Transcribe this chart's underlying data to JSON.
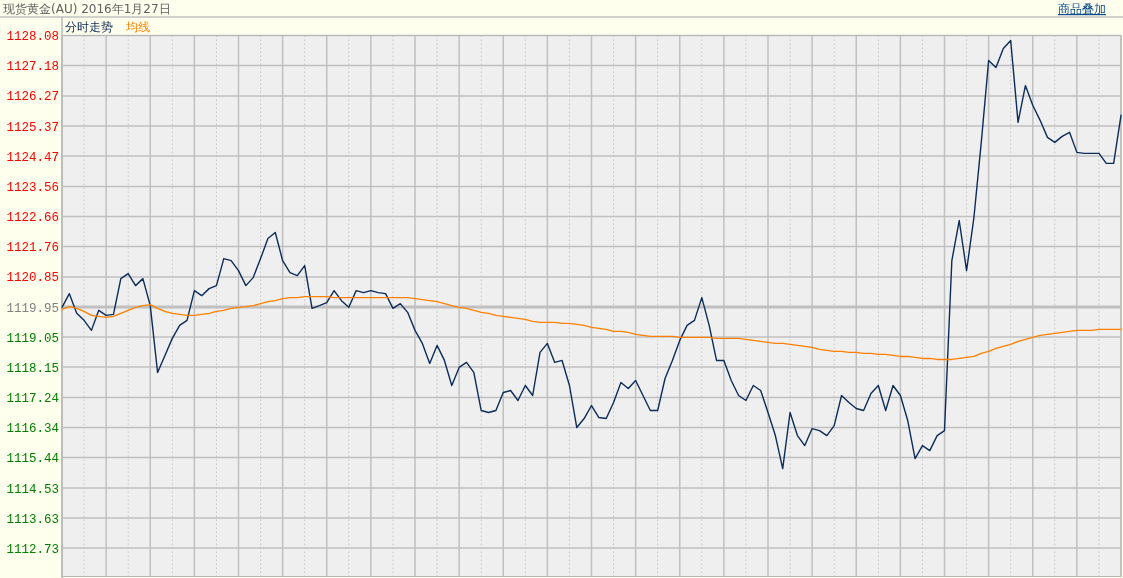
{
  "chart_data": {
    "type": "line",
    "title": "现货黄金(AU) 2016年1月27日",
    "annotations": [
      "商品叠加"
    ],
    "categories": [
      null,
      null,
      null,
      null,
      null,
      null,
      null,
      null,
      null,
      null,
      null,
      null,
      null,
      null,
      null,
      null,
      null,
      null,
      null,
      null,
      null,
      null,
      null,
      null,
      null,
      null,
      null,
      null,
      null,
      null,
      null,
      null,
      null,
      null,
      null,
      null,
      null,
      null,
      null,
      null,
      null,
      null,
      null,
      null,
      null,
      null,
      null,
      null,
      null,
      null,
      null,
      null,
      null,
      null,
      null,
      null,
      null,
      null,
      null,
      null,
      null,
      null,
      null,
      null,
      null,
      null,
      null,
      null,
      null,
      null,
      null,
      null,
      null,
      null,
      null,
      null,
      null,
      null,
      null,
      null,
      null,
      null,
      null,
      null,
      null,
      null,
      null,
      null,
      null,
      null,
      null,
      null,
      null,
      null,
      null,
      null,
      null,
      null,
      null,
      null,
      null,
      null,
      null,
      null,
      null,
      null,
      null,
      null,
      null,
      null,
      null,
      null,
      null,
      null,
      null,
      null,
      null,
      null,
      null,
      null,
      null,
      null,
      null,
      null,
      null,
      null,
      null,
      null,
      null,
      null,
      null,
      null,
      null,
      null,
      null,
      null,
      null,
      null,
      null,
      null,
      null,
      null,
      null,
      null,
      null
    ],
    "series": [
      {
        "name": "分时走势",
        "color": "#0c2c5a",
        "values": [
          1119.94,
          1120.35,
          1119.76,
          1119.55,
          1119.25,
          1119.85,
          1119.7,
          1119.73,
          1120.8,
          1120.95,
          1120.59,
          1120.8,
          1119.99,
          1117.99,
          1118.5,
          1119.01,
          1119.4,
          1119.55,
          1120.44,
          1120.29,
          1120.5,
          1120.59,
          1121.4,
          1121.34,
          1121.04,
          1120.59,
          1120.83,
          1121.4,
          1122.0,
          1122.18,
          1121.34,
          1120.98,
          1120.89,
          1121.19,
          1119.91,
          1119.99,
          1120.08,
          1120.44,
          1120.14,
          1119.94,
          1120.44,
          1120.38,
          1120.44,
          1120.38,
          1120.35,
          1119.91,
          1120.05,
          1119.79,
          1119.25,
          1118.86,
          1118.26,
          1118.8,
          1118.35,
          1117.6,
          1118.14,
          1118.29,
          1117.99,
          1116.85,
          1116.79,
          1116.85,
          1117.39,
          1117.45,
          1117.15,
          1117.6,
          1117.3,
          1118.59,
          1118.86,
          1118.29,
          1118.35,
          1117.6,
          1116.34,
          1116.61,
          1117.0,
          1116.64,
          1116.61,
          1117.09,
          1117.69,
          1117.51,
          1117.75,
          1117.3,
          1116.85,
          1116.85,
          1117.81,
          1118.35,
          1118.95,
          1119.4,
          1119.55,
          1120.23,
          1119.4,
          1118.35,
          1118.35,
          1117.75,
          1117.3,
          1117.15,
          1117.6,
          1117.45,
          1116.79,
          1116.1,
          1115.11,
          1116.79,
          1116.1,
          1115.8,
          1116.31,
          1116.25,
          1116.1,
          1116.4,
          1117.3,
          1117.09,
          1116.91,
          1116.85,
          1117.36,
          1117.6,
          1116.85,
          1117.6,
          1117.3,
          1116.55,
          1115.41,
          1115.8,
          1115.65,
          1116.1,
          1116.25,
          1121.34,
          1122.54,
          1121.04,
          1122.63,
          1124.88,
          1127.33,
          1127.12,
          1127.69,
          1127.93,
          1125.48,
          1126.58,
          1125.99,
          1125.54,
          1125.03,
          1124.88,
          1125.06,
          1125.18,
          1124.58,
          1124.55,
          1124.55,
          1124.55,
          1124.25,
          1124.25,
          1125.69
        ]
      },
      {
        "name": "均线",
        "color": "#ff8000",
        "values": [
          1119.88,
          1119.96,
          1119.91,
          1119.82,
          1119.7,
          1119.67,
          1119.64,
          1119.67,
          1119.76,
          1119.85,
          1119.94,
          1119.99,
          1120.02,
          1119.91,
          1119.82,
          1119.76,
          1119.73,
          1119.7,
          1119.7,
          1119.73,
          1119.76,
          1119.82,
          1119.85,
          1119.91,
          1119.94,
          1119.96,
          1119.99,
          1120.05,
          1120.11,
          1120.14,
          1120.2,
          1120.23,
          1120.23,
          1120.26,
          1120.26,
          1120.26,
          1120.26,
          1120.23,
          1120.23,
          1120.23,
          1120.23,
          1120.23,
          1120.23,
          1120.23,
          1120.23,
          1120.23,
          1120.23,
          1120.23,
          1120.2,
          1120.17,
          1120.14,
          1120.11,
          1120.05,
          1119.99,
          1119.94,
          1119.91,
          1119.85,
          1119.79,
          1119.76,
          1119.7,
          1119.67,
          1119.64,
          1119.61,
          1119.58,
          1119.52,
          1119.49,
          1119.49,
          1119.49,
          1119.46,
          1119.46,
          1119.43,
          1119.4,
          1119.34,
          1119.31,
          1119.28,
          1119.22,
          1119.22,
          1119.19,
          1119.13,
          1119.1,
          1119.07,
          1119.07,
          1119.07,
          1119.07,
          1119.04,
          1119.04,
          1119.04,
          1119.04,
          1119.04,
          1119.01,
          1119.01,
          1119.01,
          1119.01,
          1118.98,
          1118.95,
          1118.92,
          1118.89,
          1118.86,
          1118.86,
          1118.83,
          1118.8,
          1118.77,
          1118.74,
          1118.68,
          1118.65,
          1118.62,
          1118.62,
          1118.59,
          1118.59,
          1118.56,
          1118.56,
          1118.53,
          1118.53,
          1118.5,
          1118.47,
          1118.47,
          1118.44,
          1118.41,
          1118.41,
          1118.38,
          1118.38,
          1118.38,
          1118.41,
          1118.44,
          1118.47,
          1118.56,
          1118.62,
          1118.71,
          1118.77,
          1118.83,
          1118.92,
          1118.98,
          1119.04,
          1119.1,
          1119.13,
          1119.16,
          1119.19,
          1119.22,
          1119.25,
          1119.25,
          1119.25,
          1119.28,
          1119.28,
          1119.28,
          1119.28
        ]
      }
    ],
    "ylim": [
      1111.88,
      1128.08
    ],
    "yticks": [
      1112.73,
      1113.63,
      1114.53,
      1115.44,
      1116.34,
      1117.24,
      1118.15,
      1119.05,
      1119.95,
      1120.85,
      1121.76,
      1122.66,
      1123.56,
      1124.47,
      1125.37,
      1126.27,
      1127.18,
      1128.08
    ],
    "ref_lines": [
      {
        "axis": "y",
        "value": 1119.95,
        "color": "#c0c0c0"
      }
    ],
    "grid": true,
    "legend": "top left"
  }
}
